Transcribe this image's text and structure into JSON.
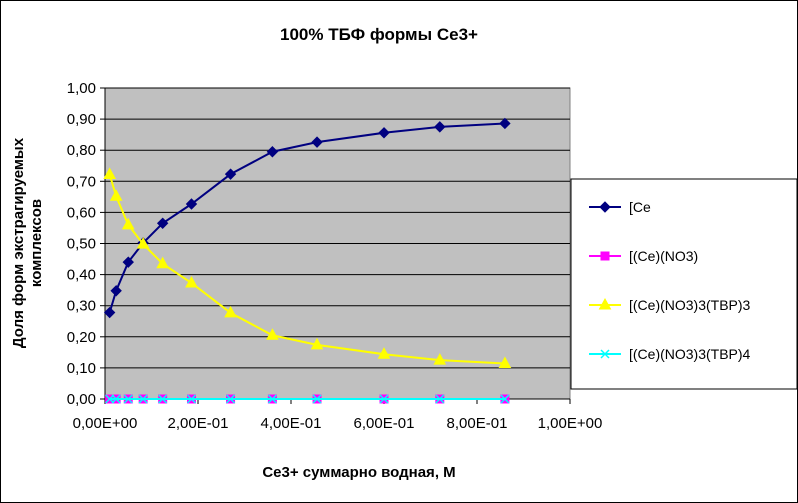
{
  "chart_data": {
    "type": "line",
    "title": "100%  ТБФ  формы Ce3+",
    "xlabel": "Ce3+ суммарно   водная, М",
    "ylabel_lines": [
      "Доля форм экстрагируемых",
      "комплексов"
    ],
    "xlim": [
      0,
      1
    ],
    "ylim": [
      0,
      1
    ],
    "x_ticks": [
      "0,00E+00",
      "2,00E-01",
      "4,00E-01",
      "6,00E-01",
      "8,00E-01",
      "1,00E+00"
    ],
    "y_ticks": [
      "0,00",
      "0,10",
      "0,20",
      "0,30",
      "0,40",
      "0,50",
      "0,60",
      "0,70",
      "0,80",
      "0,90",
      "1,00"
    ],
    "plot_background": "#c0c0c0",
    "grid": true,
    "legend_position": "right",
    "x": [
      0.01,
      0.024,
      0.05,
      0.082,
      0.124,
      0.186,
      0.27,
      0.36,
      0.456,
      0.6,
      0.72,
      0.86
    ],
    "series": [
      {
        "name": "[Ce",
        "color": "#000080",
        "marker": "diamond",
        "values": [
          0.278,
          0.348,
          0.44,
          0.502,
          0.565,
          0.627,
          0.723,
          0.795,
          0.826,
          0.856,
          0.875,
          0.886
        ]
      },
      {
        "name": "[(Ce)(NO3)",
        "color": "#ff00ff",
        "marker": "square",
        "values": [
          0,
          0,
          0,
          0,
          0,
          0,
          0,
          0,
          0,
          0,
          0,
          0
        ]
      },
      {
        "name": "[(Ce)(NO3)3(TBP)3",
        "color": "#ffff00",
        "marker": "triangle",
        "values": [
          0.722,
          0.652,
          0.56,
          0.498,
          0.435,
          0.373,
          0.277,
          0.205,
          0.174,
          0.144,
          0.125,
          0.114
        ]
      },
      {
        "name": "[(Ce)(NO3)3(TBP)4",
        "color": "#00ffff",
        "marker": "x",
        "values": [
          0,
          0,
          0,
          0,
          0,
          0,
          0,
          0,
          0,
          0,
          0,
          0
        ]
      }
    ]
  }
}
